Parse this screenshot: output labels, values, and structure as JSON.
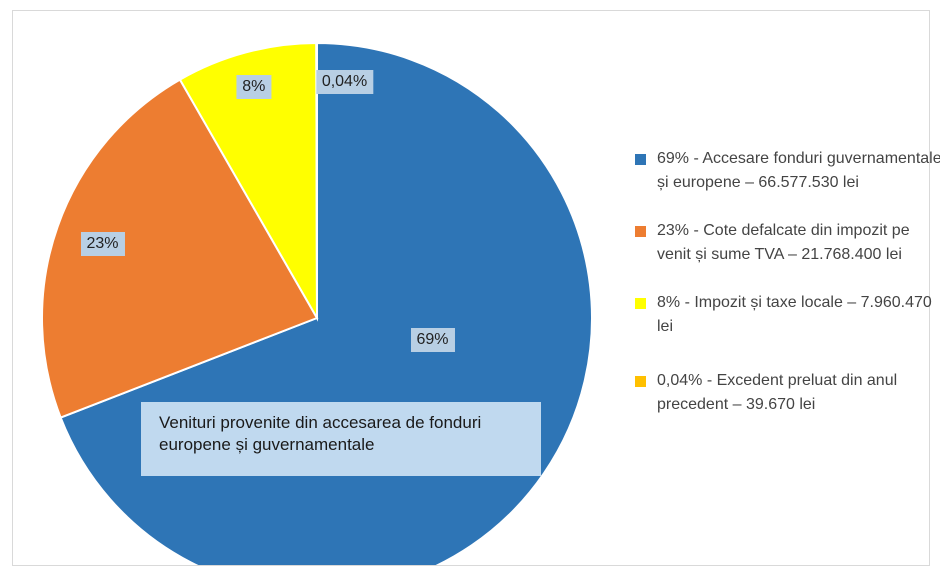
{
  "chart_data": {
    "type": "pie",
    "categories": [
      "69% - Accesare fonduri guvernamentale și europene – 66.577.530 lei",
      "23% - Cote defalcate din impozit pe venit și sume TVA – 21.768.400 lei",
      "8% - Impozit și taxe locale – 7.960.470 lei",
      "0,04% - Excedent preluat din anul precedent – 39.670 lei"
    ],
    "values": [
      66577530,
      21768400,
      7960470,
      39670
    ],
    "data_labels": [
      "69%",
      "23%",
      "8%",
      "0,04%"
    ],
    "colors": [
      "#2e75b6",
      "#ed7d31",
      "#ffff00",
      "#ffc000"
    ],
    "legend_position": "right",
    "annotation": "Venituri provenite din accesarea de fonduri europene și guvernamentale"
  }
}
